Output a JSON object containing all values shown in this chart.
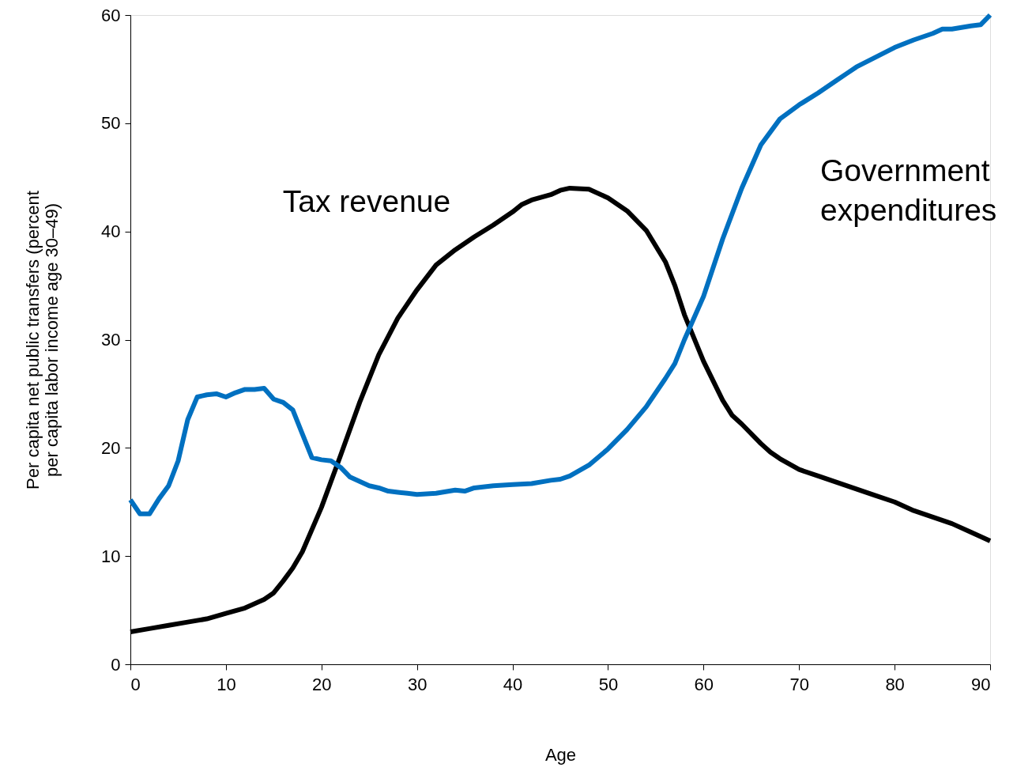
{
  "chart_data": {
    "type": "line",
    "xlabel": "Age",
    "ylabel": "Per capita net public transfers (percent per capita labor income age 30–49)",
    "xlim": [
      0,
      90
    ],
    "xticks": [
      0,
      10,
      20,
      30,
      40,
      50,
      60,
      70,
      80,
      90
    ],
    "ylim": [
      0,
      60
    ],
    "yticks": [
      0,
      10,
      20,
      30,
      40,
      50,
      60
    ],
    "grid": false,
    "legend": false,
    "marker": "none",
    "line_style": "solid",
    "series": [
      {
        "name": "Tax revenue",
        "color": "#000000",
        "x": [
          0,
          2,
          4,
          6,
          8,
          10,
          12,
          14,
          15,
          16,
          17,
          18,
          20,
          22,
          24,
          26,
          28,
          30,
          32,
          34,
          36,
          38,
          40,
          41,
          42,
          44,
          45,
          46,
          48,
          50,
          52,
          54,
          56,
          57,
          58,
          60,
          62,
          63,
          64,
          66,
          67,
          68,
          70,
          72,
          74,
          76,
          78,
          80,
          82,
          84,
          86,
          88,
          90
        ],
        "values": [
          3.0,
          3.3,
          3.6,
          3.9,
          4.2,
          4.7,
          5.2,
          6.0,
          6.6,
          7.7,
          8.9,
          10.4,
          14.5,
          19.3,
          24.2,
          28.6,
          32.0,
          34.6,
          36.9,
          38.3,
          39.5,
          40.6,
          41.8,
          42.5,
          42.9,
          43.4,
          43.8,
          44.0,
          43.9,
          43.1,
          41.9,
          40.1,
          37.2,
          35.0,
          32.3,
          28.0,
          24.4,
          23.0,
          22.2,
          20.4,
          19.6,
          19.0,
          18.0,
          17.4,
          16.8,
          16.2,
          15.6,
          15.0,
          14.2,
          13.6,
          13.0,
          12.2,
          11.4
        ]
      },
      {
        "name": "Government expenditures",
        "color": "#0070c0",
        "x": [
          0,
          1,
          2,
          3,
          4,
          5,
          6,
          7,
          8,
          9,
          10,
          11,
          12,
          13,
          14,
          15,
          16,
          17,
          18,
          19,
          20,
          21,
          22,
          23,
          24,
          25,
          26,
          27,
          28,
          29,
          30,
          32,
          34,
          35,
          36,
          38,
          40,
          42,
          44,
          45,
          46,
          48,
          50,
          52,
          54,
          56,
          57,
          58,
          60,
          62,
          64,
          66,
          68,
          70,
          72,
          74,
          75,
          76,
          78,
          80,
          82,
          84,
          85,
          86,
          88,
          89,
          90
        ],
        "values": [
          15.2,
          13.9,
          13.9,
          15.3,
          16.5,
          18.8,
          22.6,
          24.7,
          24.9,
          25.0,
          24.7,
          25.1,
          25.4,
          25.4,
          25.5,
          24.5,
          24.2,
          23.5,
          21.3,
          19.1,
          18.9,
          18.8,
          18.2,
          17.3,
          16.9,
          16.5,
          16.3,
          16.0,
          15.9,
          15.8,
          15.7,
          15.8,
          16.1,
          16.0,
          16.3,
          16.5,
          16.6,
          16.7,
          17.0,
          17.1,
          17.4,
          18.4,
          19.9,
          21.7,
          23.8,
          26.4,
          27.8,
          30.0,
          34.0,
          39.3,
          44.0,
          48.0,
          50.4,
          51.7,
          52.8,
          54.0,
          54.6,
          55.2,
          56.1,
          57.0,
          57.7,
          58.3,
          58.7,
          58.7,
          59.0,
          59.1,
          60.0
        ]
      }
    ]
  }
}
